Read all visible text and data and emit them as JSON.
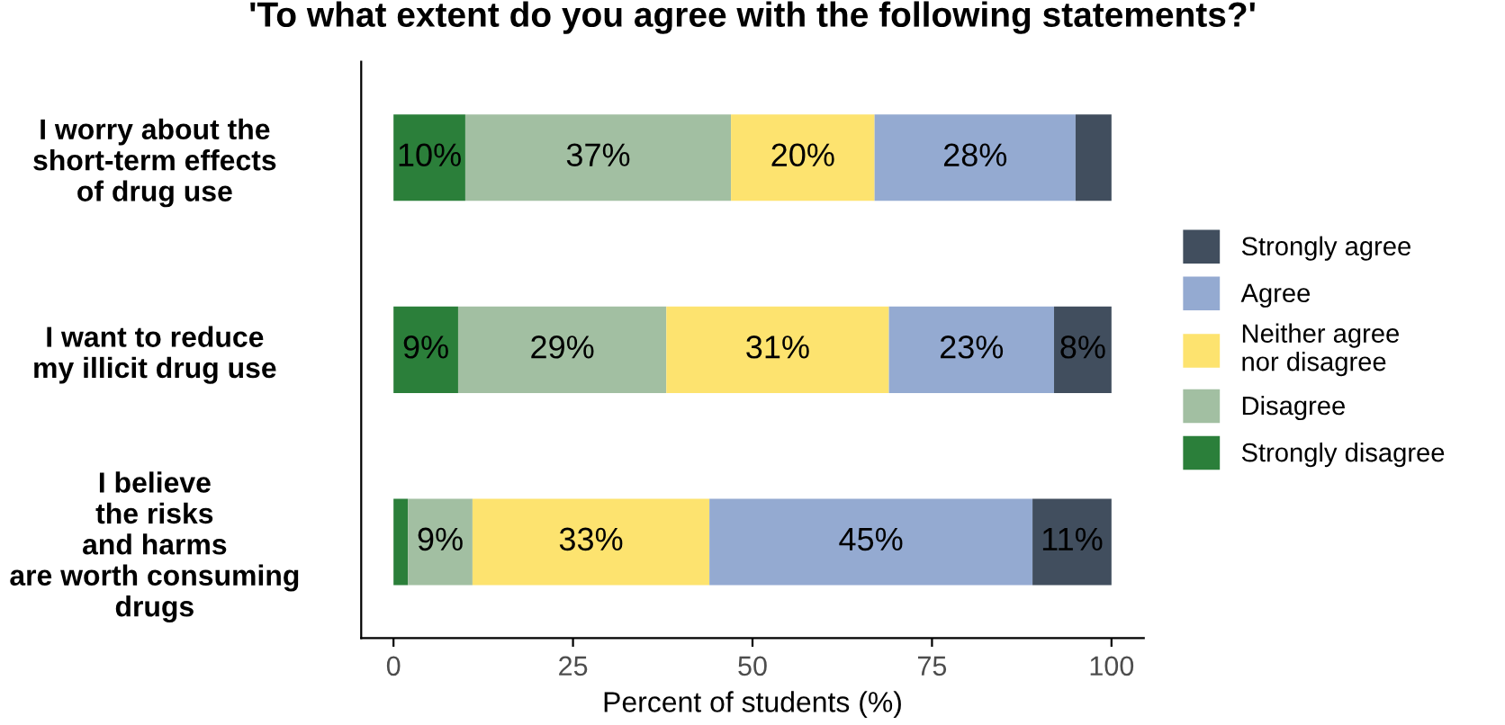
{
  "chart_data": {
    "type": "bar",
    "orientation": "horizontal",
    "stacked": true,
    "title": "'To what extent do you agree with the following statements?'",
    "xlabel": "Percent of students (%)",
    "categories": [
      "I worry about the\nshort-term effects\nof drug use",
      "I want to reduce\nmy illicit drug use",
      "I believe\nthe risks\nand harms\nare worth consuming\ndrugs"
    ],
    "series": [
      {
        "name": "Strongly disagree",
        "color": "#2b7f3a",
        "values": [
          10,
          9,
          2
        ],
        "value_labels": [
          "10%",
          "9%",
          null
        ]
      },
      {
        "name": "Disagree",
        "color": "#a2bfa2",
        "values": [
          37,
          29,
          9
        ],
        "value_labels": [
          "37%",
          "29%",
          "9%"
        ]
      },
      {
        "name": "Neither agree\nnor disagree",
        "color": "#fde36f",
        "values": [
          20,
          31,
          33
        ],
        "value_labels": [
          "20%",
          "31%",
          "33%"
        ]
      },
      {
        "name": "Agree",
        "color": "#94aad1",
        "values": [
          28,
          23,
          45
        ],
        "value_labels": [
          "28%",
          "23%",
          "45%"
        ]
      },
      {
        "name": "Strongly agree",
        "color": "#414e5e",
        "values": [
          5,
          8,
          11
        ],
        "value_labels": [
          null,
          "8%",
          "11%"
        ]
      }
    ],
    "xlim": [
      -4.5,
      104.5
    ],
    "xticks": [
      0,
      25,
      50,
      75,
      100
    ],
    "grid": false,
    "legend": "right"
  }
}
